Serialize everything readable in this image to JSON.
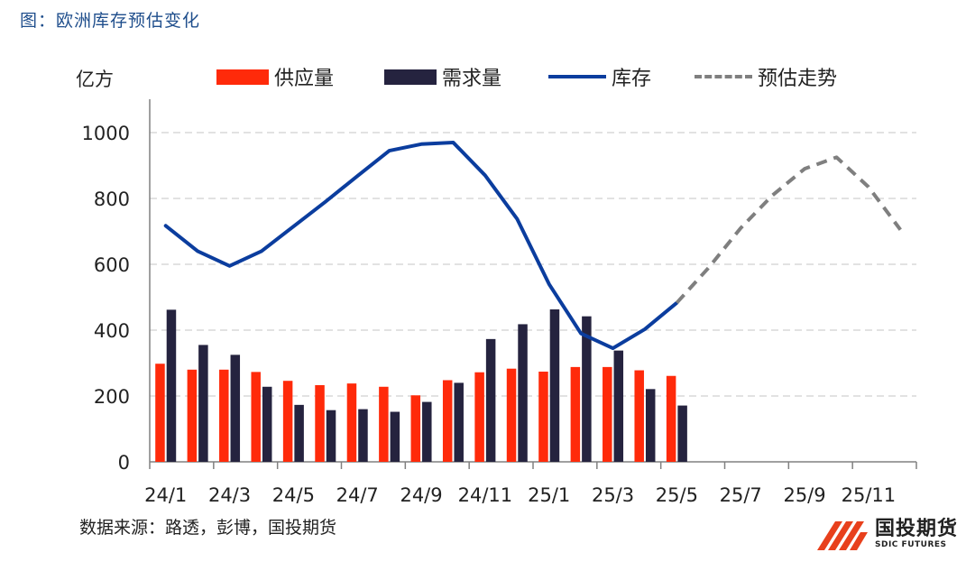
{
  "figure_title": "图：欧洲库存预估变化",
  "unit_label": "亿方",
  "source_note": "数据来源：路透，彭博，国投期货",
  "logo": {
    "cn": "国投期货",
    "en": "SDIC FUTURES"
  },
  "colors": {
    "supply": "#ff2a0a",
    "demand": "#25233f",
    "inventory": "#0b3d9e",
    "forecast": "#7f7f7f",
    "grid": "#d9d9d9",
    "axis": "#808080"
  },
  "chart_data": {
    "type": "bar+line",
    "ylim": [
      0,
      1000
    ],
    "yticks": [
      "0",
      "200",
      "400",
      "600",
      "800",
      "1000"
    ],
    "xtick_labels": [
      "24/1",
      "24/3",
      "24/5",
      "24/7",
      "24/9",
      "24/11",
      "25/1",
      "25/3",
      "25/5",
      "25/7",
      "25/9",
      "25/11"
    ],
    "months": [
      "24/1",
      "24/2",
      "24/3",
      "24/4",
      "24/5",
      "24/6",
      "24/7",
      "24/8",
      "24/9",
      "24/10",
      "24/11",
      "24/12",
      "25/1",
      "25/2",
      "25/3",
      "25/4",
      "25/5",
      "25/6",
      "25/7",
      "25/8",
      "25/9",
      "25/10",
      "25/11",
      "25/12"
    ],
    "legend": [
      "供应量",
      "需求量",
      "库存",
      "预估走势"
    ],
    "series": [
      {
        "name": "供应量",
        "type": "bar",
        "values": [
          298,
          280,
          280,
          273,
          246,
          233,
          238,
          228,
          202,
          248,
          272,
          283,
          274,
          288,
          288,
          278,
          261
        ]
      },
      {
        "name": "需求量",
        "type": "bar",
        "values": [
          462,
          355,
          325,
          228,
          173,
          157,
          160,
          152,
          182,
          240,
          373,
          418,
          463,
          442,
          338,
          221,
          171
        ]
      },
      {
        "name": "库存",
        "type": "line",
        "x": [
          "24/1",
          "24/2",
          "24/3",
          "24/4",
          "24/5",
          "24/6",
          "24/7",
          "24/8",
          "24/9",
          "24/10",
          "24/11",
          "24/12",
          "25/1",
          "25/2",
          "25/3",
          "25/4",
          "25/5"
        ],
        "values": [
          717,
          640,
          595,
          640,
          715,
          790,
          868,
          945,
          965,
          970,
          870,
          738,
          540,
          390,
          345,
          403,
          483
        ]
      },
      {
        "name": "预估走势",
        "type": "line-dashed",
        "x": [
          "25/5",
          "25/6",
          "25/7",
          "25/8",
          "25/9",
          "25/10",
          "25/11",
          "25/12"
        ],
        "values": [
          483,
          590,
          710,
          810,
          890,
          925,
          835,
          705
        ]
      }
    ]
  }
}
